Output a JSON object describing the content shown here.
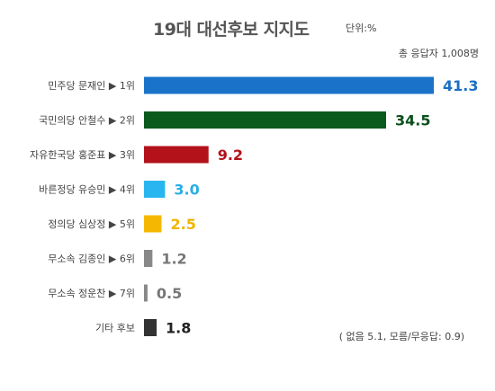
{
  "chart_data": {
    "type": "bar",
    "orientation": "horizontal",
    "title": "19대 대선후보 지지도",
    "unit_label": "단위:%",
    "respondents_label": "총 응답자 1,008명",
    "footnote": "( 없음 5.1, 모름/무응답: 0.9)",
    "categories": [
      "민주당 문재인 ▶ 1위",
      "국민의당 안철수 ▶ 2위",
      "자유한국당 홍준표 ▶ 3위",
      "바른정당 유승민 ▶ 4위",
      "정의당 심상정 ▶ 5위",
      "무소속 김종인 ▶ 6위",
      "무소속 정운찬 ▶ 7위",
      "기타 후보"
    ],
    "values": [
      41.3,
      34.5,
      9.2,
      3.0,
      2.5,
      1.2,
      0.5,
      1.8
    ],
    "value_labels": [
      "41.3",
      "34.5",
      "9.2",
      "3.0",
      "2.5",
      "1.2",
      "0.5",
      "1.8"
    ],
    "colors": [
      "#1a73c9",
      "#0a5a1e",
      "#b3121b",
      "#29b6f0",
      "#f5b800",
      "#888888",
      "#888888",
      "#333333"
    ],
    "label_colors": [
      "#1a6fc4",
      "#0a4f1a",
      "#b3121b",
      "#29aee6",
      "#f2b400",
      "#777777",
      "#777777",
      "#222222"
    ],
    "grid": false
  }
}
